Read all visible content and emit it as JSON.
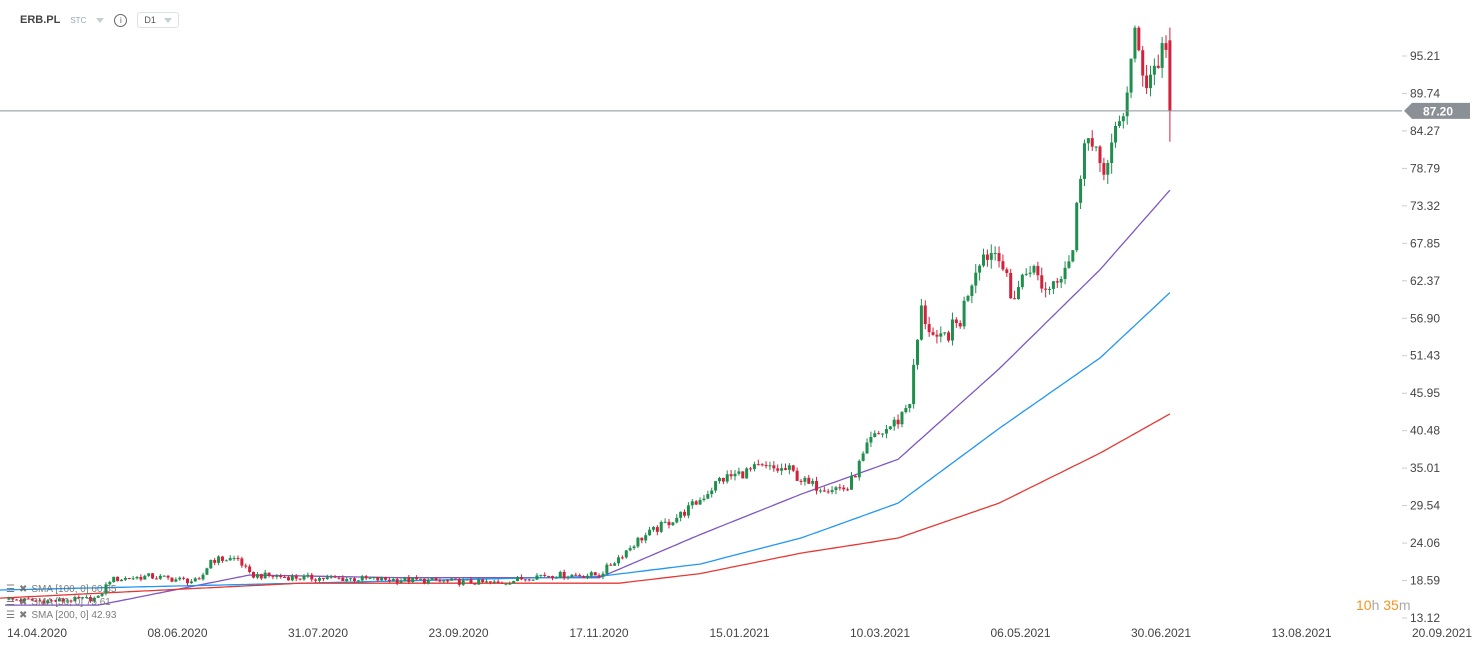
{
  "header": {
    "symbol": "ERB.PL",
    "market": "STC",
    "timeframe": "D1"
  },
  "current_price": {
    "label": "87.20",
    "value": 87.2,
    "color": "#8a9096"
  },
  "timer": {
    "hours": "10",
    "h": "h",
    "minutes": "35",
    "m": "m"
  },
  "legend": [
    {
      "label": "SMA [100, 0] 60.65",
      "color": "#2196f3"
    },
    {
      "label": "SMA [50, 0] 75.61",
      "color": "#7e57c2"
    },
    {
      "label": "SMA [200, 0] 42.93",
      "color": "#e53935"
    }
  ],
  "chart_data": {
    "type": "candlestick",
    "title": "ERB.PL D1",
    "ylim": [
      13.12,
      95.21
    ],
    "y_ticks": [
      "95.21",
      "89.74",
      "84.27",
      "78.79",
      "73.32",
      "67.85",
      "62.37",
      "56.90",
      "51.43",
      "45.95",
      "40.48",
      "35.01",
      "29.54",
      "24.06",
      "18.59",
      "13.12"
    ],
    "x_ticks": [
      "14.04.2020",
      "08.06.2020",
      "31.07.2020",
      "23.09.2020",
      "17.11.2020",
      "15.01.2021",
      "10.03.2021",
      "06.05.2021",
      "30.06.2021",
      "13.08.2021",
      "20.09.2021"
    ],
    "bar_count": 300,
    "colors": {
      "up": "#1f8f4e",
      "down": "#d3213b"
    },
    "close_path": [
      [
        0,
        15.8
      ],
      [
        12,
        15.6
      ],
      [
        24,
        16
      ],
      [
        27,
        18.7
      ],
      [
        37,
        19.2
      ],
      [
        50,
        18.4
      ],
      [
        53,
        21.6
      ],
      [
        60,
        21.8
      ],
      [
        63,
        19.4
      ],
      [
        76,
        19
      ],
      [
        102,
        18.7
      ],
      [
        127,
        18.2
      ],
      [
        138,
        19.4
      ],
      [
        153,
        19.4
      ],
      [
        163,
        24.5
      ],
      [
        174,
        28.2
      ],
      [
        179,
        30.4
      ],
      [
        184,
        33.3
      ],
      [
        194,
        35
      ],
      [
        202,
        34.7
      ],
      [
        207,
        32.5
      ],
      [
        217,
        32
      ],
      [
        223,
        39
      ],
      [
        230,
        42
      ],
      [
        233,
        45
      ],
      [
        236,
        58
      ],
      [
        240,
        53
      ],
      [
        246,
        56.6
      ],
      [
        248,
        61
      ],
      [
        251,
        66
      ],
      [
        256,
        66.9
      ],
      [
        259,
        59.6
      ],
      [
        264,
        64.7
      ],
      [
        268,
        61
      ],
      [
        272,
        64
      ],
      [
        275,
        66.9
      ],
      [
        278,
        84.4
      ],
      [
        281,
        80
      ],
      [
        284,
        79.3
      ],
      [
        288,
        87.3
      ],
      [
        291,
        97.5
      ],
      [
        294,
        91.7
      ],
      [
        297,
        94.6
      ],
      [
        299,
        97.5
      ],
      [
        300,
        87.2
      ]
    ],
    "series": [
      {
        "name": "SMA 50",
        "color": "#7e57c2",
        "points": [
          [
            0,
            15
          ],
          [
            24,
            15
          ],
          [
            63,
            19.4
          ],
          [
            102,
            19
          ],
          [
            153,
            19
          ],
          [
            179,
            25.3
          ],
          [
            205,
            31.2
          ],
          [
            230,
            36.3
          ],
          [
            256,
            49.5
          ],
          [
            282,
            64
          ],
          [
            300,
            75.61
          ]
        ]
      },
      {
        "name": "SMA 100",
        "color": "#2196f3",
        "points": [
          [
            -2,
            17.2
          ],
          [
            76,
            18.2
          ],
          [
            153,
            19.2
          ],
          [
            179,
            21
          ],
          [
            205,
            24.8
          ],
          [
            230,
            29.9
          ],
          [
            256,
            40.8
          ],
          [
            282,
            51.1
          ],
          [
            300,
            60.65
          ]
        ]
      },
      {
        "name": "SMA 200",
        "color": "#e53935",
        "points": [
          [
            -2,
            16
          ],
          [
            76,
            18.2
          ],
          [
            158,
            18.2
          ],
          [
            179,
            19.6
          ],
          [
            205,
            22.6
          ],
          [
            230,
            24.8
          ],
          [
            256,
            29.9
          ],
          [
            282,
            37.2
          ],
          [
            300,
            42.93
          ]
        ]
      }
    ]
  }
}
